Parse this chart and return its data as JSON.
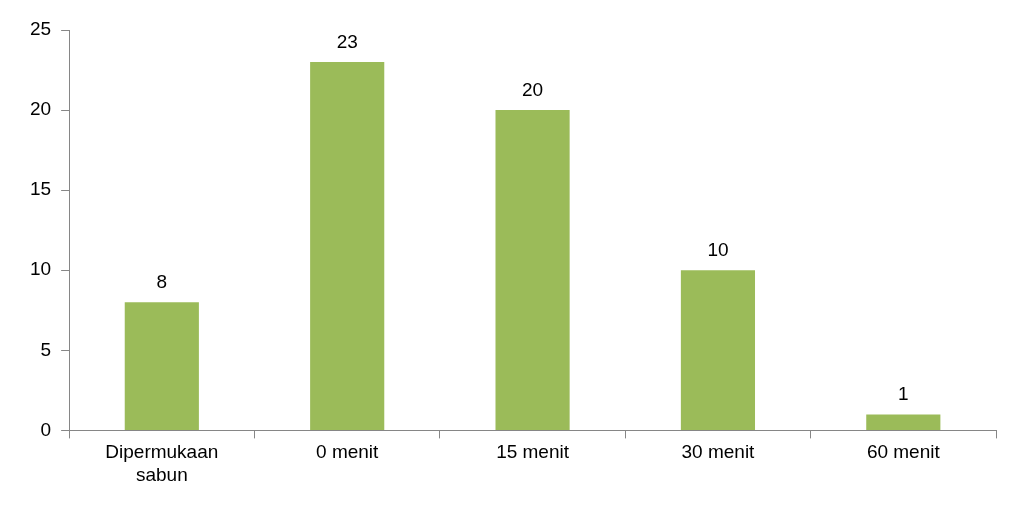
{
  "chart_data": {
    "type": "bar",
    "categories": [
      "Dipermukaan sabun",
      "0 menit",
      "15 menit",
      "30 menit",
      "60 menit"
    ],
    "values": [
      8,
      23,
      20,
      10,
      1
    ],
    "color": "#9bbb59",
    "ylim": [
      0,
      25
    ],
    "yticks": [
      0,
      5,
      10,
      15,
      20,
      25
    ],
    "grid": false,
    "legend": false,
    "data_labels": true
  }
}
